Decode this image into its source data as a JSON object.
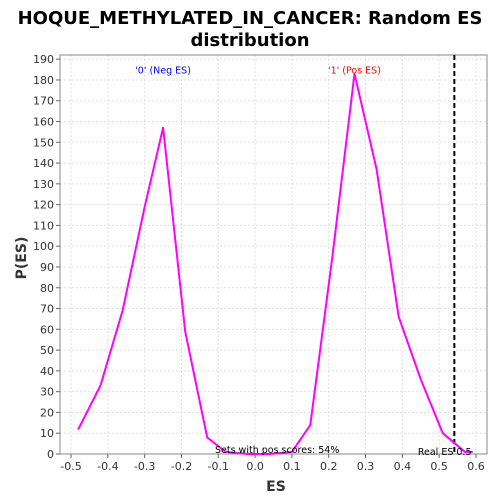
{
  "chart_data": {
    "type": "line",
    "title": "HOQUE_METHYLATED_IN_CANCER: Random ES distribution",
    "title_lines": [
      "HOQUE_METHYLATED_IN_CANCER: Random ES",
      "distribution"
    ],
    "xlabel": "ES",
    "ylabel": "P(ES)",
    "xlim": [
      -0.53,
      0.63
    ],
    "ylim": [
      0,
      192
    ],
    "x_ticks": [
      -0.5,
      -0.4,
      -0.3,
      -0.2,
      -0.1,
      0.0,
      0.1,
      0.2,
      0.3,
      0.4,
      0.5,
      0.6
    ],
    "x_tick_labels": [
      "-0.5",
      "-0.4",
      "-0.3",
      "-0.2",
      "-0.1",
      "0.0",
      "0.1",
      "0.2",
      "0.3",
      "0.4",
      "0.5",
      "0.6"
    ],
    "y_ticks": [
      0,
      10,
      20,
      30,
      40,
      50,
      60,
      70,
      80,
      90,
      100,
      110,
      120,
      130,
      140,
      150,
      160,
      170,
      180,
      190
    ],
    "grid": true,
    "series": [
      {
        "color": "#ff00ff",
        "points": [
          [
            -0.48,
            12
          ],
          [
            -0.42,
            33
          ],
          [
            -0.36,
            69
          ],
          [
            -0.3,
            119
          ],
          [
            -0.25,
            157
          ],
          [
            -0.19,
            59
          ],
          [
            -0.13,
            8
          ],
          [
            -0.08,
            1
          ],
          [
            -0.02,
            0
          ],
          [
            0.04,
            0
          ],
          [
            0.1,
            1
          ],
          [
            0.15,
            14
          ],
          [
            0.21,
            95
          ],
          [
            0.27,
            183
          ],
          [
            0.33,
            137
          ],
          [
            0.39,
            66
          ],
          [
            0.45,
            36
          ],
          [
            0.51,
            10
          ],
          [
            0.55,
            4
          ],
          [
            0.57,
            1
          ],
          [
            0.59,
            1
          ]
        ]
      }
    ],
    "reference_line": {
      "x": 0.5413,
      "color": "#000000",
      "style": "dashed"
    },
    "annotations": [
      {
        "text": "'0' (Neg ES)",
        "x": -0.25,
        "y": 183,
        "color": "#0000ff"
      },
      {
        "text": "'1' (Pos ES)",
        "x": 0.27,
        "y": 183,
        "color": "#ff0000"
      },
      {
        "text": "Sets with pos scores: 54%",
        "x": 0.06,
        "y": 0.6,
        "color": "#000000"
      },
      {
        "text": "Real ES 0.5",
        "x": 0.515,
        "y": -0.4,
        "color": "#000000"
      }
    ]
  }
}
